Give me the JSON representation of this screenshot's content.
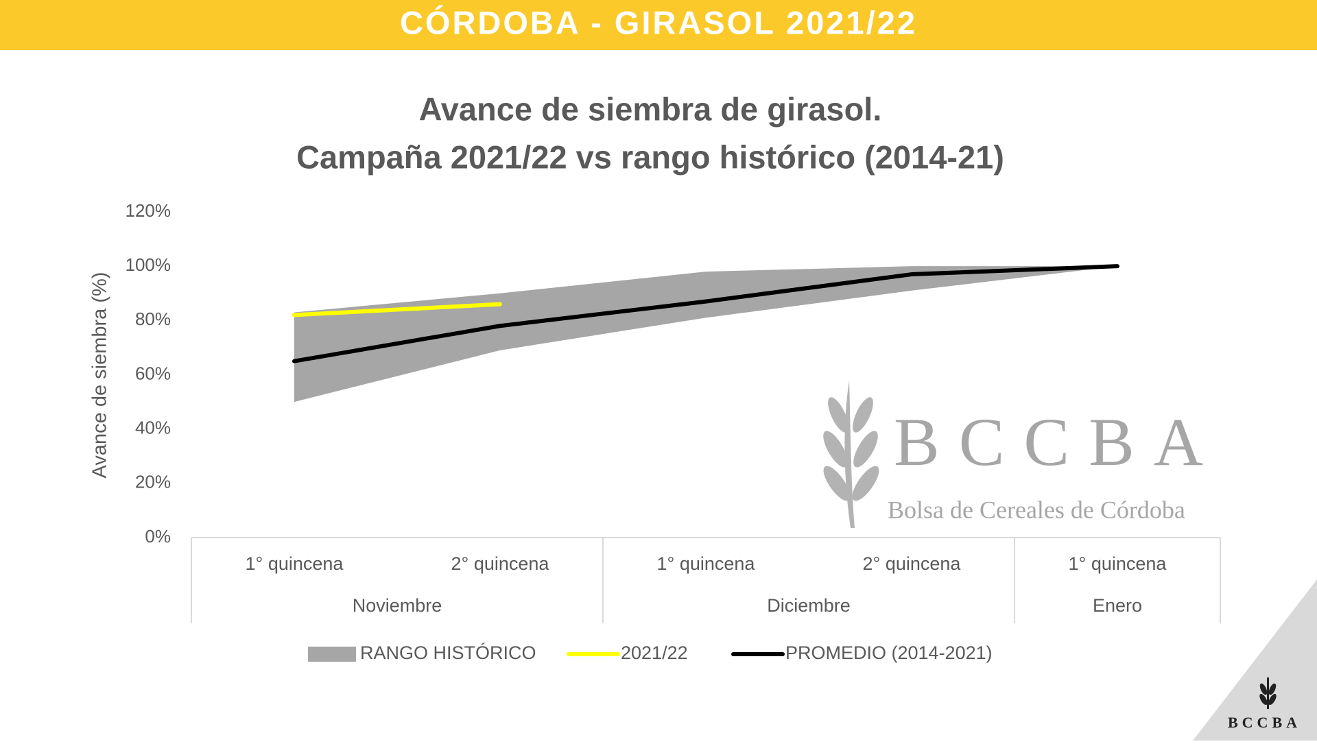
{
  "header": {
    "title": "CÓRDOBA - GIRASOL 2021/22"
  },
  "logo": {
    "watermark_name": "BCCBA",
    "watermark_subtitle": "Bolsa de Cereales de Córdoba",
    "corner_name": "BCCBA"
  },
  "chart_data": {
    "type": "line",
    "title": [
      "Avance de siembra de girasol.",
      "Campaña 2021/22 vs rango histórico (2014-21)"
    ],
    "y_label": "Avance de siembra (%)",
    "categories": [
      "1° quincena",
      "2° quincena",
      "1° quincena",
      "2° quincena",
      "1° quincena"
    ],
    "category_groups": [
      {
        "label": "Noviembre",
        "count": 2
      },
      {
        "label": "Diciembre",
        "count": 2
      },
      {
        "label": "Enero",
        "count": 1
      }
    ],
    "series": [
      {
        "name": "RANGO HISTÓRICO",
        "kind": "range",
        "color": "#a6a6a6",
        "low": [
          50,
          69,
          81,
          91,
          100
        ],
        "high": [
          83,
          90,
          98,
          100,
          100
        ]
      },
      {
        "name": "2021/22",
        "kind": "line",
        "color": "#ffff00",
        "values": [
          82,
          86,
          null,
          null,
          null
        ]
      },
      {
        "name": "PROMEDIO (2014-2021)",
        "kind": "line",
        "color": "#000000",
        "values": [
          65,
          78,
          87,
          97,
          100
        ]
      }
    ],
    "ylim": [
      0,
      120
    ],
    "yticks": [
      {
        "value": 0,
        "label": "0%"
      },
      {
        "value": 20,
        "label": "20%"
      },
      {
        "value": 40,
        "label": "40%"
      },
      {
        "value": 60,
        "label": "60%"
      },
      {
        "value": 80,
        "label": "80%"
      },
      {
        "value": 100,
        "label": "100%"
      },
      {
        "value": 120,
        "label": "120%"
      }
    ],
    "grid": false,
    "legend": "bottom"
  }
}
